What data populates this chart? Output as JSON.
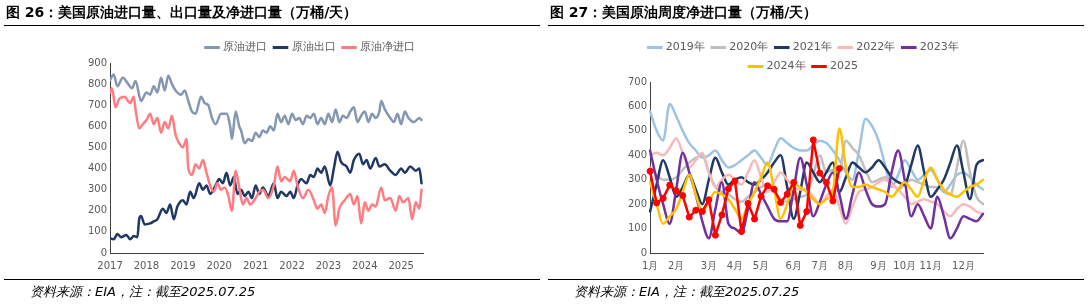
{
  "chart_data": [
    {
      "type": "line",
      "title": "图 26：美国原油进口量、出口量及净进口量（万桶/天）",
      "xlim": [
        2017,
        2025.6
      ],
      "xticks": [
        2017,
        2018,
        2019,
        2020,
        2021,
        2022,
        2023,
        2024,
        2025
      ],
      "ylim": [
        0,
        900
      ],
      "yticks": [
        0,
        100,
        200,
        300,
        400,
        500,
        600,
        700,
        800,
        900
      ],
      "legend": "top right",
      "annotations": [
        "资料来源：EIA，注：截至2025.07.25"
      ],
      "series": [
        {
          "name": "原油进口",
          "color": "#8497b0",
          "x": [
            2017,
            2017.1,
            2017.2,
            2017.35,
            2017.5,
            2017.6,
            2017.7,
            2017.85,
            2018,
            2018.1,
            2018.2,
            2018.3,
            2018.4,
            2018.5,
            2018.6,
            2018.7,
            2018.8,
            2018.95,
            2019.05,
            2019.15,
            2019.25,
            2019.35,
            2019.5,
            2019.6,
            2019.7,
            2019.8,
            2019.9,
            2020.05,
            2020.2,
            2020.3,
            2020.35,
            2020.45,
            2020.55,
            2020.6,
            2020.7,
            2020.8,
            2020.9,
            2021,
            2021.1,
            2021.2,
            2021.3,
            2021.4,
            2021.5,
            2021.6,
            2021.7,
            2021.8,
            2021.9,
            2022,
            2022.1,
            2022.2,
            2022.3,
            2022.4,
            2022.5,
            2022.6,
            2022.7,
            2022.8,
            2022.9,
            2023,
            2023.1,
            2023.2,
            2023.3,
            2023.4,
            2023.5,
            2023.6,
            2023.7,
            2023.8,
            2023.9,
            2024,
            2024.1,
            2024.2,
            2024.3,
            2024.4,
            2024.45,
            2024.55,
            2024.7,
            2024.8,
            2024.9,
            2025,
            2025.1,
            2025.2,
            2025.35,
            2025.5,
            2025.56
          ],
          "values": [
            820,
            845,
            790,
            830,
            800,
            780,
            815,
            720,
            760,
            750,
            790,
            760,
            830,
            770,
            840,
            800,
            770,
            750,
            770,
            720,
            670,
            660,
            740,
            710,
            700,
            640,
            610,
            660,
            660,
            600,
            540,
            670,
            600,
            580,
            520,
            540,
            530,
            570,
            550,
            580,
            570,
            600,
            580,
            660,
            620,
            650,
            610,
            660,
            630,
            640,
            610,
            650,
            640,
            660,
            610,
            640,
            610,
            660,
            620,
            680,
            620,
            650,
            640,
            670,
            690,
            620,
            650,
            670,
            620,
            660,
            640,
            670,
            720,
            680,
            640,
            620,
            660,
            610,
            670,
            640,
            620,
            640,
            630
          ]
        },
        {
          "name": "原油出口",
          "color": "#203864",
          "x": [
            2017,
            2017.1,
            2017.2,
            2017.3,
            2017.45,
            2017.55,
            2017.65,
            2017.75,
            2017.8,
            2017.85,
            2017.95,
            2018.1,
            2018.2,
            2018.3,
            2018.45,
            2018.55,
            2018.65,
            2018.75,
            2018.85,
            2019,
            2019.1,
            2019.2,
            2019.3,
            2019.45,
            2019.55,
            2019.65,
            2019.75,
            2019.9,
            2020,
            2020.1,
            2020.2,
            2020.3,
            2020.4,
            2020.5,
            2020.6,
            2020.7,
            2020.8,
            2020.9,
            2021,
            2021.1,
            2021.2,
            2021.35,
            2021.5,
            2021.6,
            2021.7,
            2021.85,
            2021.95,
            2022.05,
            2022.15,
            2022.25,
            2022.4,
            2022.5,
            2022.6,
            2022.7,
            2022.8,
            2022.9,
            2023.05,
            2023.15,
            2023.25,
            2023.35,
            2023.5,
            2023.6,
            2023.7,
            2023.85,
            2023.95,
            2024.05,
            2024.15,
            2024.3,
            2024.4,
            2024.55,
            2024.7,
            2024.85,
            2025,
            2025.1,
            2025.25,
            2025.4,
            2025.5,
            2025.56
          ],
          "values": [
            70,
            65,
            90,
            75,
            85,
            65,
            80,
            75,
            160,
            175,
            135,
            140,
            150,
            160,
            210,
            190,
            230,
            160,
            220,
            250,
            230,
            290,
            260,
            330,
            300,
            320,
            280,
            320,
            350,
            330,
            380,
            320,
            360,
            280,
            300,
            270,
            290,
            260,
            320,
            280,
            310,
            270,
            330,
            260,
            290,
            270,
            290,
            260,
            320,
            350,
            330,
            370,
            360,
            400,
            380,
            410,
            320,
            400,
            480,
            430,
            410,
            380,
            440,
            470,
            420,
            440,
            400,
            450,
            410,
            420,
            390,
            370,
            400,
            380,
            410,
            390,
            400,
            330
          ]
        },
        {
          "name": "原油净进口",
          "color": "#ff7c80",
          "x": [
            2017,
            2017.05,
            2017.15,
            2017.25,
            2017.4,
            2017.55,
            2017.65,
            2017.7,
            2017.8,
            2017.9,
            2018,
            2018.1,
            2018.2,
            2018.3,
            2018.4,
            2018.5,
            2018.6,
            2018.7,
            2018.8,
            2018.9,
            2019,
            2019.1,
            2019.15,
            2019.25,
            2019.35,
            2019.45,
            2019.55,
            2019.65,
            2019.75,
            2019.85,
            2019.95,
            2020.05,
            2020.15,
            2020.25,
            2020.35,
            2020.45,
            2020.55,
            2020.65,
            2020.75,
            2020.85,
            2021,
            2021.1,
            2021.2,
            2021.35,
            2021.5,
            2021.6,
            2021.7,
            2021.8,
            2021.95,
            2022.05,
            2022.15,
            2022.3,
            2022.45,
            2022.6,
            2022.7,
            2022.8,
            2022.9,
            2023,
            2023.1,
            2023.2,
            2023.3,
            2023.45,
            2023.6,
            2023.7,
            2023.8,
            2023.9,
            2024,
            2024.1,
            2024.2,
            2024.3,
            2024.45,
            2024.55,
            2024.7,
            2024.85,
            2024.95,
            2025.05,
            2025.2,
            2025.3,
            2025.4,
            2025.5,
            2025.56
          ],
          "values": [
            760,
            780,
            690,
            730,
            740,
            710,
            740,
            680,
            590,
            610,
            630,
            660,
            610,
            640,
            570,
            620,
            590,
            650,
            560,
            520,
            500,
            540,
            400,
            370,
            420,
            400,
            440,
            380,
            320,
            290,
            330,
            300,
            310,
            270,
            200,
            390,
            310,
            230,
            260,
            230,
            260,
            290,
            300,
            260,
            320,
            410,
            340,
            360,
            340,
            390,
            320,
            260,
            300,
            250,
            210,
            230,
            190,
            270,
            310,
            130,
            210,
            250,
            280,
            230,
            270,
            140,
            240,
            200,
            230,
            220,
            310,
            250,
            260,
            200,
            270,
            240,
            260,
            160,
            240,
            210,
            300
          ]
        }
      ]
    },
    {
      "type": "line",
      "title": "图 27：美国原油周度净进口量（万桶/天）",
      "categories": [
        "1月",
        null,
        null,
        null,
        "2月",
        null,
        null,
        null,
        null,
        "3月",
        null,
        null,
        null,
        "4月",
        null,
        null,
        null,
        "5月",
        null,
        null,
        null,
        null,
        "6月",
        null,
        null,
        null,
        "7月",
        null,
        null,
        null,
        "8月",
        null,
        null,
        null,
        null,
        "9月",
        null,
        null,
        null,
        "10月",
        null,
        null,
        null,
        "11月",
        null,
        null,
        null,
        null,
        "12月",
        null,
        null,
        null
      ],
      "ylim": [
        0,
        700
      ],
      "yticks": [
        0,
        100,
        200,
        300,
        400,
        500,
        600,
        700
      ],
      "legend": "top",
      "annotations": [
        "资料来源：EIA，注：截至2025.07.25"
      ],
      "series": [
        {
          "name": "2019年",
          "color": "#9dc3e6",
          "values": [
            580,
            500,
            460,
            610,
            560,
            500,
            450,
            420,
            390,
            400,
            420,
            380,
            350,
            360,
            380,
            400,
            420,
            390,
            360,
            420,
            470,
            450,
            430,
            420,
            420,
            440,
            460,
            450,
            420,
            380,
            330,
            300,
            420,
            550,
            520,
            460,
            360,
            270,
            320,
            380,
            340,
            300,
            320,
            340,
            300,
            250,
            280,
            320,
            330,
            310,
            280,
            260
          ]
        },
        {
          "name": "2020年",
          "color": "#bfbfbf",
          "values": [
            350,
            320,
            300,
            300,
            310,
            340,
            370,
            390,
            400,
            330,
            270,
            250,
            240,
            220,
            210,
            230,
            250,
            270,
            280,
            250,
            220,
            210,
            220,
            230,
            240,
            320,
            400,
            330,
            340,
            340,
            460,
            430,
            400,
            340,
            290,
            300,
            310,
            290,
            260,
            280,
            300,
            290,
            280,
            270,
            270,
            250,
            240,
            350,
            460,
            330,
            230,
            200
          ]
        },
        {
          "name": "2021年",
          "color": "#1f3864",
          "values": [
            170,
            280,
            380,
            310,
            230,
            270,
            320,
            260,
            200,
            300,
            390,
            330,
            280,
            300,
            310,
            290,
            280,
            300,
            330,
            370,
            400,
            270,
            140,
            250,
            370,
            330,
            290,
            330,
            370,
            250,
            310,
            370,
            350,
            330,
            350,
            380,
            350,
            310,
            290,
            280,
            360,
            440,
            330,
            230,
            260,
            300,
            370,
            440,
            330,
            220,
            360,
            380
          ]
        },
        {
          "name": "2022年",
          "color": "#f8b9b9",
          "values": [
            400,
            410,
            400,
            430,
            470,
            410,
            350,
            380,
            410,
            330,
            270,
            300,
            320,
            300,
            280,
            330,
            380,
            310,
            250,
            290,
            330,
            300,
            270,
            260,
            260,
            230,
            200,
            230,
            260,
            190,
            120,
            190,
            250,
            260,
            270,
            290,
            300,
            280,
            260,
            230,
            200,
            210,
            220,
            210,
            200,
            170,
            150,
            180,
            200,
            190,
            170,
            160
          ]
        },
        {
          "name": "2023年",
          "color": "#7030a0",
          "values": [
            420,
            300,
            200,
            120,
            260,
            410,
            330,
            240,
            130,
            60,
            180,
            290,
            120,
            100,
            80,
            180,
            290,
            240,
            190,
            140,
            130,
            130,
            260,
            390,
            280,
            150,
            210,
            280,
            330,
            240,
            140,
            240,
            330,
            260,
            200,
            190,
            200,
            330,
            420,
            300,
            150,
            200,
            150,
            100,
            230,
            150,
            60,
            100,
            150,
            140,
            130,
            160
          ]
        },
        {
          "name": "2024年",
          "color": "#ffc000",
          "values": [
            290,
            200,
            120,
            150,
            180,
            250,
            320,
            240,
            170,
            210,
            250,
            240,
            220,
            180,
            140,
            200,
            250,
            310,
            370,
            260,
            140,
            200,
            280,
            270,
            250,
            220,
            200,
            220,
            250,
            510,
            350,
            270,
            270,
            280,
            270,
            260,
            250,
            230,
            260,
            290,
            260,
            230,
            300,
            350,
            300,
            260,
            240,
            230,
            250,
            270,
            280,
            300
          ]
        },
        {
          "name": "2025",
          "color": "#ff0000",
          "marker": "circle",
          "values": [
            335,
            205,
            224,
            278,
            255,
            235,
            147,
            175,
            170,
            218,
            73,
            156,
            263,
            295,
            88,
            203,
            139,
            232,
            275,
            261,
            207,
            241,
            289,
            113,
            170,
            463,
            327,
            289,
            213,
            346,
            null,
            null,
            null,
            null,
            null,
            null,
            null,
            null,
            null,
            null,
            null,
            null,
            null,
            null,
            null,
            null,
            null,
            null,
            null,
            null,
            null,
            null
          ]
        }
      ]
    }
  ]
}
